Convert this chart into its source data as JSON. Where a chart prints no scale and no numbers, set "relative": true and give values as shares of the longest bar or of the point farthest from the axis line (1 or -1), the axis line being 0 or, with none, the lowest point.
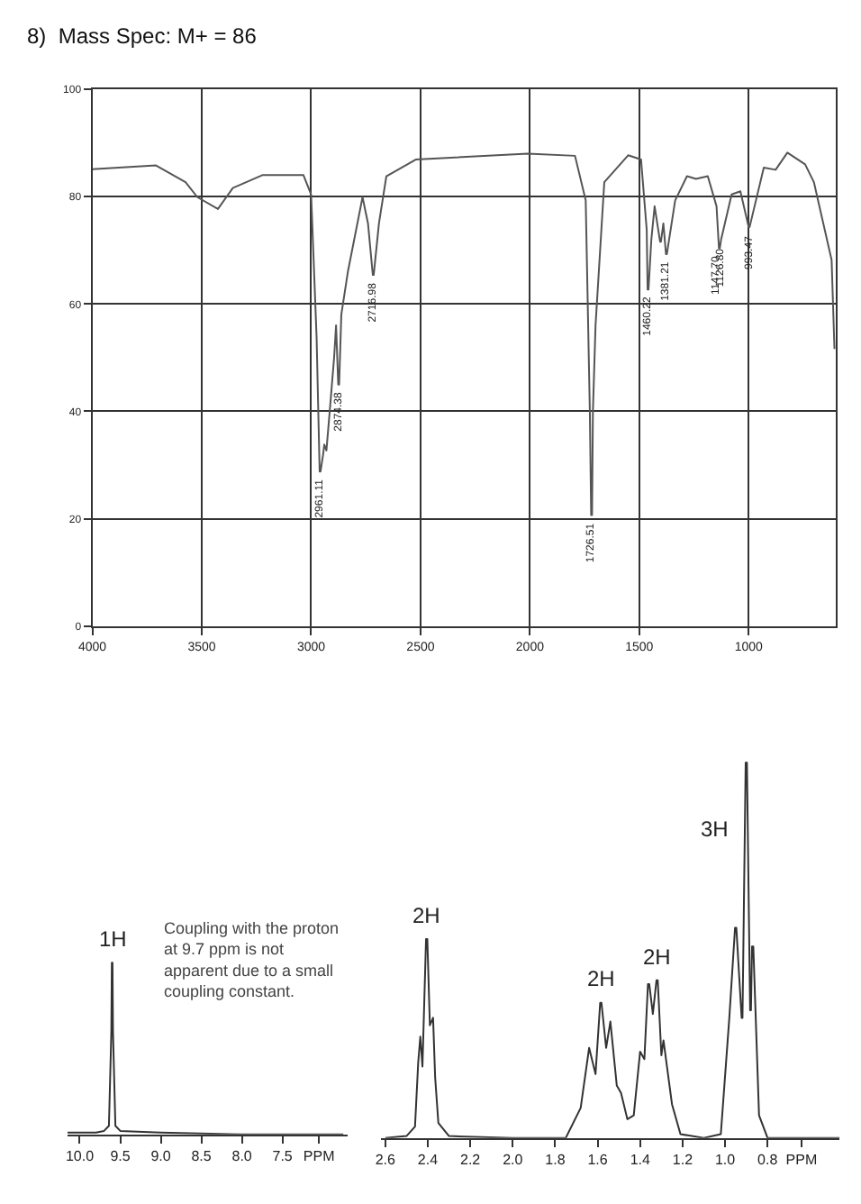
{
  "chart_data": [
    {
      "type": "line",
      "title": "8)  Mass Spec: M+ = 86",
      "color": "#555555",
      "x": [
        4000,
        3709,
        3574,
        3520,
        3426,
        3358,
        3223,
        3035,
        3000,
        2975,
        2961,
        2957,
        2945,
        2940,
        2930,
        2915,
        2895,
        2886,
        2876,
        2872,
        2862,
        2832,
        2765,
        2740,
        2718,
        2714,
        2690,
        2656,
        2522,
        2010,
        1794,
        1745,
        1726,
        1720,
        1716,
        1712,
        1700,
        1660,
        1551,
        1492,
        1466,
        1462,
        1458,
        1445,
        1430,
        1405,
        1401,
        1390,
        1378,
        1374,
        1336,
        1282,
        1241,
        1187,
        1147,
        1136,
        1132,
        1126,
        1078,
        1038,
        1000,
        996,
        931,
        877,
        823,
        742,
        702,
        621,
        608
      ],
      "values": [
        85.1,
        85.8,
        82.7,
        79.9,
        77.7,
        81.6,
        84,
        84,
        80.4,
        53.8,
        28.8,
        28.8,
        32,
        33.8,
        32.7,
        40,
        50,
        56,
        45,
        45,
        58,
        66,
        79.9,
        75,
        65.4,
        65.4,
        75,
        83.8,
        86.9,
        88,
        87.6,
        79.3,
        40,
        20.7,
        20.7,
        40,
        56,
        82.7,
        87.7,
        86.9,
        73.8,
        62.7,
        62.7,
        72,
        78.2,
        71.6,
        71.6,
        75,
        69.3,
        69.3,
        79.3,
        83.8,
        83.3,
        83.8,
        78.2,
        70.4,
        70.4,
        72,
        80.4,
        81,
        74.3,
        74.3,
        85.4,
        85,
        88.2,
        86,
        82.7,
        68.2,
        51.6
      ],
      "xlim": [
        4000,
        600
      ],
      "xticks": [
        4000,
        3500,
        3000,
        2500,
        2000,
        1500,
        1000
      ],
      "ylim": [
        0,
        100
      ],
      "yticks": [
        0,
        20,
        40,
        60,
        80,
        100
      ],
      "grid": true,
      "annotations": [
        {
          "text": "2961.11",
          "x": 2959,
          "y": 28.8
        },
        {
          "text": "2874.38",
          "x": 2874,
          "y": 45
        },
        {
          "text": "2716.98",
          "x": 2716,
          "y": 65.4
        },
        {
          "text": "1726.51",
          "x": 1718,
          "y": 20.7
        },
        {
          "text": "1460.22",
          "x": 1460,
          "y": 62.7
        },
        {
          "text": "1381.21",
          "x": 1376,
          "y": 69.3
        },
        {
          "text": "1147.70",
          "x": 1147,
          "y": 70.4
        },
        {
          "text": "1126.80",
          "x": 1126,
          "y": 72
        },
        {
          "text": "993.47",
          "x": 998,
          "y": 74.3
        }
      ]
    },
    {
      "type": "line",
      "relative": true,
      "color": "#333333",
      "tick_labels": "x",
      "x": [
        10.15,
        9.8,
        9.7,
        9.64,
        9.61,
        9.604,
        9.596,
        9.59,
        9.56,
        9.5,
        9.0,
        8.0,
        6.75
      ],
      "values": [
        0.01,
        0.01,
        0.02,
        0.05,
        0.6,
        1,
        1,
        0.6,
        0.05,
        0.02,
        0.01,
        0.0,
        0.0
      ],
      "xlim": [
        10.15,
        6.7
      ],
      "xticks": [
        {
          "value": 10.0,
          "label": "10.0"
        },
        9.5,
        {
          "value": 9.0,
          "label": "9.0"
        },
        8.5,
        {
          "value": 8.0,
          "label": "8.0"
        },
        7.5,
        {
          "value": 7.05,
          "label": "PPM"
        }
      ],
      "annotations": [
        {
          "text": "1H",
          "x": 9.6,
          "y": 1
        },
        "Coupling with the proton\nat 9.7 ppm is not\napparent due to a small\ncoupling constant."
      ]
    },
    {
      "type": "line",
      "relative": true,
      "color": "#333333",
      "tick_labels": "x",
      "x": [
        2.6,
        2.5,
        2.46,
        2.445,
        2.435,
        2.425,
        2.408,
        2.402,
        2.39,
        2.375,
        2.365,
        2.35,
        2.3,
        2.0,
        1.75,
        1.68,
        1.64,
        1.61,
        1.588,
        1.582,
        1.56,
        1.54,
        1.51,
        1.49,
        1.46,
        1.43,
        1.4,
        1.38,
        1.363,
        1.357,
        1.34,
        1.323,
        1.317,
        1.3,
        1.29,
        1.25,
        1.21,
        1.1,
        1.02,
        0.98,
        0.953,
        0.947,
        0.922,
        0.918,
        0.903,
        0.897,
        0.882,
        0.878,
        0.873,
        0.867,
        0.84,
        0.8,
        0.7,
        0.46
      ],
      "values": [
        0.0,
        0.005,
        0.03,
        0.2,
        0.27,
        0.19,
        0.53,
        0.53,
        0.3,
        0.32,
        0.16,
        0.04,
        0.005,
        0.0,
        0.0,
        0.08,
        0.24,
        0.17,
        0.36,
        0.36,
        0.24,
        0.31,
        0.14,
        0.12,
        0.05,
        0.06,
        0.23,
        0.21,
        0.41,
        0.41,
        0.33,
        0.42,
        0.42,
        0.22,
        0.26,
        0.09,
        0.01,
        0.0,
        0.01,
        0.32,
        0.56,
        0.56,
        0.32,
        0.32,
        1,
        1,
        0.34,
        0.34,
        0.51,
        0.51,
        0.06,
        0.0,
        0.0,
        0.0
      ],
      "xlim": [
        2.62,
        0.46
      ],
      "xticks": [
        2.6,
        2.4,
        2.2,
        {
          "value": 2.0,
          "label": "2.0"
        },
        1.8,
        1.6,
        1.4,
        1.2,
        {
          "value": 1.0,
          "label": "1.0"
        },
        0.8,
        {
          "value": 0.64,
          "label": "PPM"
        }
      ],
      "annotations": [
        {
          "text": "2H",
          "x": 2.405,
          "y": 0.53
        },
        {
          "text": "2H",
          "x": 1.585,
          "y": 0.36
        },
        {
          "text": "2H",
          "x": 1.32,
          "y": 0.42
        },
        "3H"
      ]
    }
  ]
}
